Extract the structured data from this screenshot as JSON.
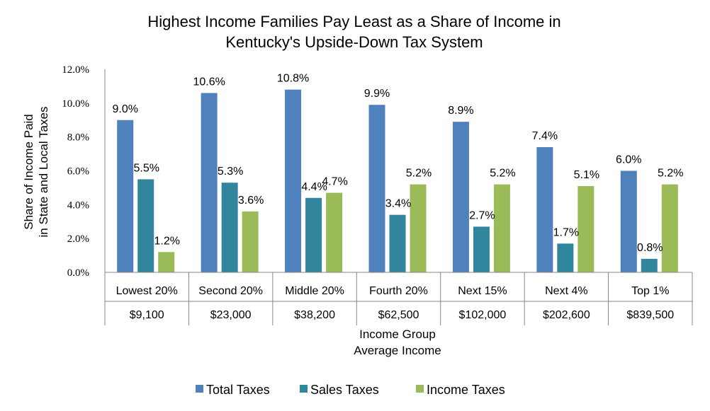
{
  "chart_data": {
    "type": "bar",
    "title": [
      "Highest Income Families Pay Least as a Share of Income in",
      "Kentucky's Upside-Down Tax System"
    ],
    "categories": [
      "Lowest 20%",
      "Second 20%",
      "Middle 20%",
      "Fourth 20%",
      "Next 15%",
      "Next 4%",
      "Top 1%"
    ],
    "average_incomes": [
      "$9,100",
      "$23,000",
      "$38,200",
      "$62,500",
      "$102,000",
      "$202,600",
      "$839,500"
    ],
    "series": [
      {
        "name": "Total Taxes",
        "color": "#4F81BD",
        "values": [
          9.0,
          10.6,
          10.8,
          9.9,
          8.9,
          7.4,
          6.0
        ],
        "labels": [
          "9.0%",
          "10.6%",
          "10.8%",
          "9.9%",
          "8.9%",
          "7.4%",
          "6.0%"
        ]
      },
      {
        "name": "Sales Taxes",
        "color": "#31859C",
        "values": [
          5.5,
          5.3,
          4.4,
          3.4,
          2.7,
          1.7,
          0.8
        ],
        "labels": [
          "5.5%",
          "5.3%",
          "4.4%",
          "3.4%",
          "2.7%",
          "1.7%",
          "0.8%"
        ]
      },
      {
        "name": "Income Taxes",
        "color": "#9BBB59",
        "values": [
          1.2,
          3.6,
          4.7,
          5.2,
          5.2,
          5.1,
          5.2
        ],
        "labels": [
          "1.2%",
          "3.6%",
          "4.7%",
          "5.2%",
          "5.2%",
          "5.1%",
          "5.2%"
        ]
      }
    ],
    "yticks": [
      "0.0%",
      "2.0%",
      "4.0%",
      "6.0%",
      "8.0%",
      "10.0%",
      "12.0%"
    ],
    "ylim": [
      0,
      12
    ],
    "ylabel": [
      "Share of Income Paid",
      "in State and Local Taxes"
    ],
    "xlabel": [
      "Income Group",
      "Average Income"
    ],
    "legend_position": "bottom",
    "grid": false
  }
}
